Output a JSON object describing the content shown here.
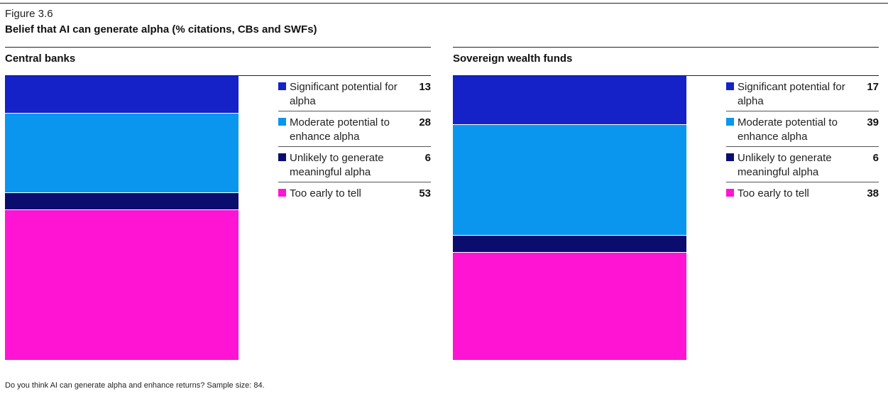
{
  "figure": {
    "label": "Figure 3.6",
    "title": "Belief that AI can generate alpha (% citations, CBs and SWFs)",
    "footnote": "Do you think AI can generate alpha and enhance returns? Sample size: 84."
  },
  "colors": {
    "significant": "#1422c8",
    "moderate": "#0a96ee",
    "unlikely": "#0b0d6e",
    "too_early": "#ff14d4"
  },
  "chart_data": [
    {
      "type": "bar",
      "stacked": true,
      "title": "Central banks",
      "categories": [
        "Significant potential for alpha",
        "Moderate potential to enhance alpha",
        "Unlikely to generate meaningful alpha",
        "Too early to tell"
      ],
      "values": [
        13,
        28,
        6,
        53
      ],
      "ylim": [
        0,
        100
      ],
      "legend": "right",
      "grid": false
    },
    {
      "type": "bar",
      "stacked": true,
      "title": "Sovereign wealth funds",
      "categories": [
        "Significant potential for alpha",
        "Moderate potential to enhance alpha",
        "Unlikely to generate meaningful alpha",
        "Too early to tell"
      ],
      "values": [
        17,
        39,
        6,
        38
      ],
      "ylim": [
        0,
        100
      ],
      "legend": "right",
      "grid": false
    }
  ]
}
